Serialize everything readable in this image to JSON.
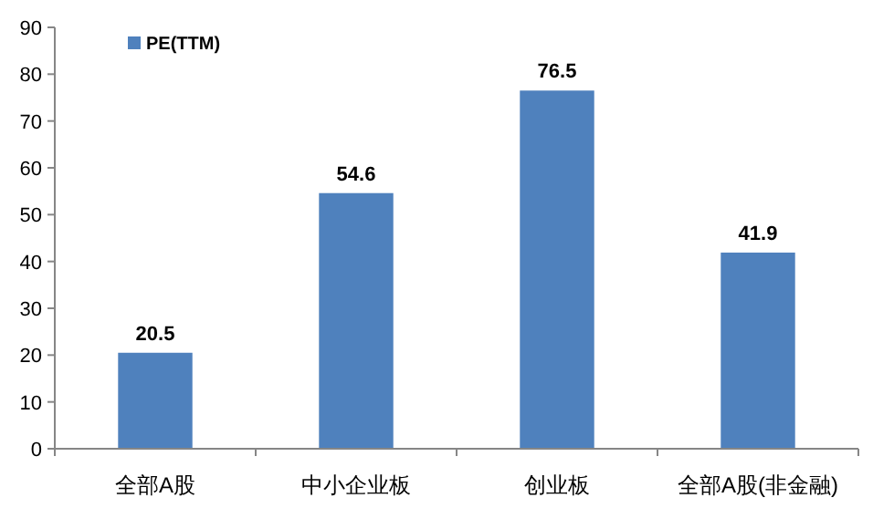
{
  "chart_data": {
    "type": "bar",
    "categories": [
      "全部A股",
      "中小企业板",
      "创业板",
      "全部A股(非金融)"
    ],
    "series": [
      {
        "name": "PE(TTM)",
        "color": "#4f81bd",
        "values": [
          20.5,
          54.6,
          76.5,
          41.9
        ]
      }
    ],
    "ylim": [
      0,
      90
    ],
    "yticks": [
      0,
      10,
      20,
      30,
      40,
      50,
      60,
      70,
      80,
      90
    ],
    "legend": "top left",
    "data_labels": true
  }
}
